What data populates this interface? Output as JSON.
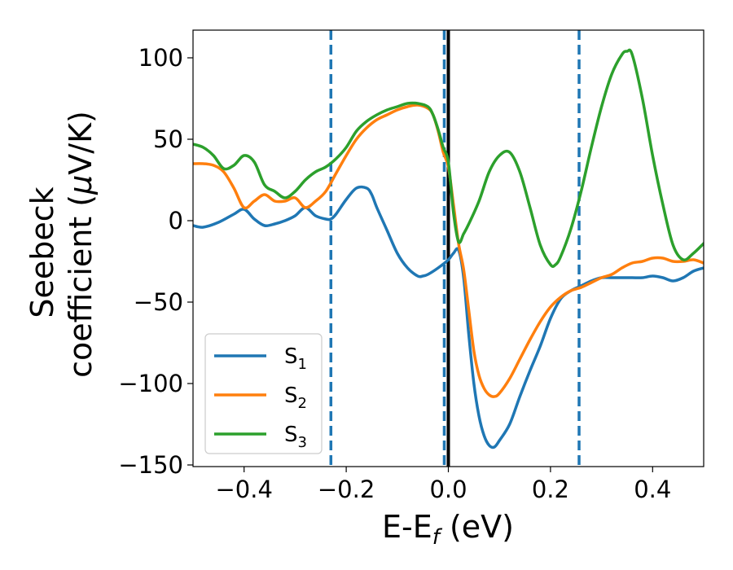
{
  "chart_data": {
    "type": "line",
    "title": "",
    "xlabel": "E-E",
    "xlabel_sub": "f",
    "xlabel_unit": " (eV)",
    "ylabel_line1": "Seebeck",
    "ylabel_line2": "coefficient  (",
    "ylabel_mu": "μ",
    "ylabel_unit": "V/K)",
    "xlim": [
      -0.5,
      0.5
    ],
    "ylim": [
      -151,
      117
    ],
    "xticks": [
      -0.4,
      -0.2,
      0.0,
      0.2,
      0.4
    ],
    "xtick_labels": [
      "−0.4",
      "−0.2",
      "0.0",
      "0.2",
      "0.4"
    ],
    "yticks": [
      -150,
      -100,
      -50,
      0,
      50,
      100
    ],
    "ytick_labels": [
      "−150",
      "−100",
      "−50",
      "0",
      "50",
      "100"
    ],
    "grid": false,
    "legend_position": "lower-left",
    "vlines_dashed": [
      -0.23,
      -0.008,
      0.256
    ],
    "vline_dashed_color": "#1f77b4",
    "vline_solid": 0.0,
    "vline_solid_color": "#000000",
    "series": [
      {
        "name": "S",
        "sub": "1",
        "color": "#1f77b4",
        "x": [
          -0.5,
          -0.48,
          -0.45,
          -0.42,
          -0.4,
          -0.38,
          -0.36,
          -0.34,
          -0.32,
          -0.3,
          -0.28,
          -0.26,
          -0.24,
          -0.23,
          -0.22,
          -0.2,
          -0.18,
          -0.16,
          -0.15,
          -0.14,
          -0.12,
          -0.1,
          -0.08,
          -0.06,
          -0.05,
          -0.04,
          -0.02,
          0.0,
          0.01,
          0.02,
          0.03,
          0.04,
          0.05,
          0.06,
          0.07,
          0.08,
          0.09,
          0.1,
          0.12,
          0.14,
          0.16,
          0.18,
          0.2,
          0.22,
          0.24,
          0.26,
          0.28,
          0.3,
          0.32,
          0.34,
          0.36,
          0.38,
          0.4,
          0.42,
          0.44,
          0.46,
          0.48,
          0.5
        ],
        "y": [
          -3,
          -4,
          -1,
          4,
          7,
          1,
          -3,
          -2,
          0,
          3,
          8,
          3,
          1,
          1,
          4,
          13,
          20,
          20,
          16,
          8,
          -6,
          -20,
          -29,
          -34,
          -34,
          -33,
          -29,
          -24,
          -20,
          -18,
          -35,
          -70,
          -100,
          -120,
          -132,
          -138,
          -139,
          -135,
          -125,
          -108,
          -92,
          -77,
          -60,
          -48,
          -43,
          -40,
          -37,
          -35,
          -35,
          -35,
          -35,
          -35,
          -34,
          -35,
          -37,
          -35,
          -31,
          -29
        ]
      },
      {
        "name": "S",
        "sub": "2",
        "color": "#ff7f0e",
        "x": [
          -0.5,
          -0.48,
          -0.46,
          -0.44,
          -0.42,
          -0.4,
          -0.38,
          -0.36,
          -0.34,
          -0.32,
          -0.3,
          -0.28,
          -0.26,
          -0.24,
          -0.22,
          -0.2,
          -0.18,
          -0.16,
          -0.14,
          -0.12,
          -0.1,
          -0.08,
          -0.06,
          -0.04,
          -0.03,
          -0.02,
          -0.01,
          0.0,
          0.01,
          0.02,
          0.03,
          0.04,
          0.05,
          0.06,
          0.07,
          0.08,
          0.09,
          0.1,
          0.12,
          0.14,
          0.16,
          0.18,
          0.2,
          0.22,
          0.24,
          0.26,
          0.28,
          0.3,
          0.32,
          0.34,
          0.36,
          0.38,
          0.4,
          0.42,
          0.44,
          0.46,
          0.48,
          0.5
        ],
        "y": [
          35,
          35,
          34,
          30,
          20,
          8,
          12,
          16,
          12,
          12,
          14,
          8,
          12,
          18,
          29,
          40,
          50,
          57,
          62,
          65,
          68,
          70,
          71,
          69,
          65,
          55,
          42,
          33,
          10,
          -14,
          -30,
          -55,
          -80,
          -95,
          -103,
          -107,
          -108,
          -106,
          -97,
          -85,
          -73,
          -62,
          -53,
          -47,
          -43,
          -41,
          -38,
          -35,
          -33,
          -29,
          -26,
          -25,
          -23,
          -23,
          -25,
          -25,
          -24,
          -26
        ]
      },
      {
        "name": "S",
        "sub": "3",
        "color": "#2ca02c",
        "x": [
          -0.5,
          -0.48,
          -0.46,
          -0.44,
          -0.42,
          -0.4,
          -0.38,
          -0.36,
          -0.34,
          -0.32,
          -0.3,
          -0.28,
          -0.26,
          -0.24,
          -0.22,
          -0.2,
          -0.18,
          -0.16,
          -0.14,
          -0.12,
          -0.1,
          -0.08,
          -0.06,
          -0.04,
          -0.03,
          -0.02,
          -0.01,
          0.0,
          0.01,
          0.02,
          0.03,
          0.04,
          0.06,
          0.08,
          0.1,
          0.12,
          0.14,
          0.16,
          0.18,
          0.2,
          0.21,
          0.22,
          0.24,
          0.26,
          0.28,
          0.3,
          0.32,
          0.34,
          0.35,
          0.36,
          0.38,
          0.4,
          0.42,
          0.44,
          0.46,
          0.48,
          0.5
        ],
        "y": [
          47,
          45,
          40,
          32,
          34,
          40,
          36,
          22,
          18,
          14,
          18,
          25,
          30,
          33,
          38,
          45,
          55,
          61,
          65,
          68,
          70,
          72,
          72,
          70,
          65,
          56,
          45,
          36,
          5,
          -13,
          -8,
          -2,
          12,
          30,
          40,
          42,
          30,
          8,
          -15,
          -27,
          -27,
          -22,
          -5,
          18,
          45,
          70,
          90,
          102,
          104,
          102,
          75,
          40,
          10,
          -15,
          -24,
          -20,
          -14
        ]
      }
    ]
  }
}
